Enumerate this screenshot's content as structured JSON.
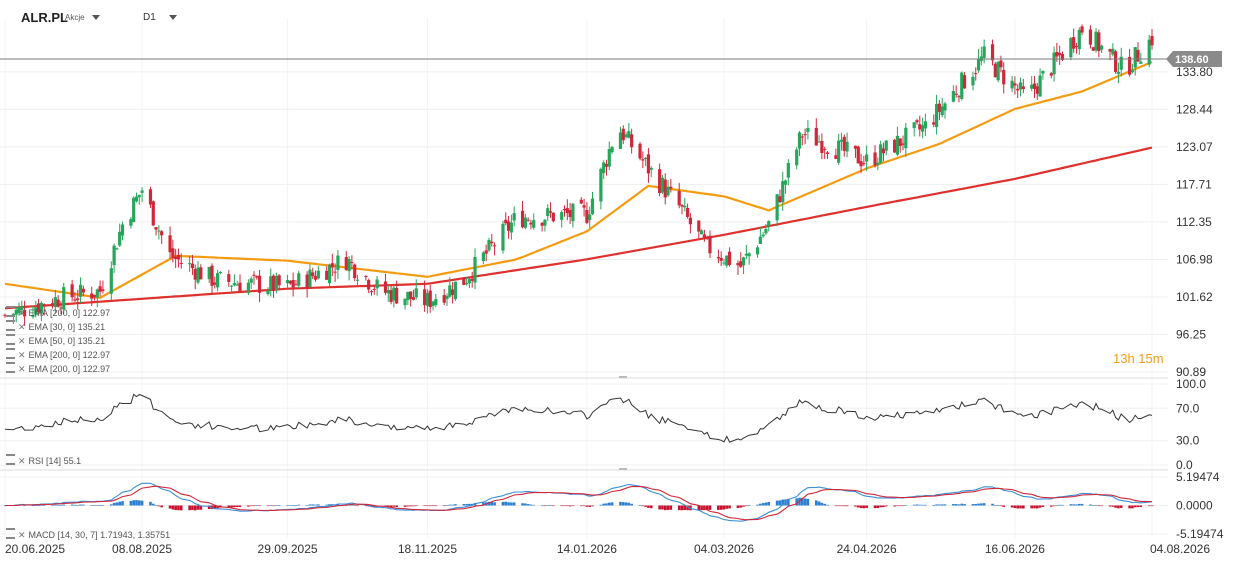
{
  "header": {
    "symbol": "ALR.PL",
    "instrument_type": "Akcje",
    "timeframe": "D1"
  },
  "countdown": "13h 15m",
  "price_axis": {
    "ticks": [
      "138.60",
      "133.80",
      "128.44",
      "123.07",
      "117.71",
      "112.35",
      "106.98",
      "101.62",
      "96.25",
      "90.89"
    ],
    "current_price": "138.60",
    "current_price_color": "#8a8a8a"
  },
  "rsi_axis": {
    "ticks": [
      "100.0",
      "70.0",
      "30.0",
      "0.0"
    ]
  },
  "macd_axis": {
    "ticks": [
      "5.19474",
      "0.0000",
      "-5.19474"
    ]
  },
  "date_axis": [
    "20.06.2025",
    "08.08.2025",
    "29.09.2025",
    "18.11.2025",
    "14.01.2026",
    "04.03.2026",
    "24.04.2026",
    "16.06.2026",
    "04.08.2026"
  ],
  "legend": {
    "indicators": [
      "EMA [200, 0] 122.97",
      "EMA [30, 0] 135.21",
      "EMA [50, 0] 135.21",
      "EMA [200, 0] 122.97",
      "EMA [200, 0] 122.97"
    ],
    "rsi": "RSI [14] 55.1",
    "macd": "MACD [14, 30, 7] 1.71943, 1.35751"
  },
  "colors": {
    "bull": "#26a65b",
    "bear": "#d0283a",
    "ema_fast": "#f39c12",
    "ema_slow": "#e0302e",
    "rsi_line": "#333333",
    "macd_line": "#3b8fd8",
    "signal_line": "#d0283a",
    "hist_pos": "#2a7fd0",
    "hist_neg": "#c8102e"
  },
  "chart_data": [
    {
      "type": "candlestick",
      "title": "ALR.PL",
      "x_ticks": [
        "20.06.2025",
        "08.08.2025",
        "29.09.2025",
        "18.11.2025",
        "14.01.2026",
        "04.03.2026",
        "24.04.2026",
        "16.06.2026",
        "04.08.2026"
      ],
      "ylim": [
        90.89,
        141.5
      ],
      "close_anchors": [
        {
          "date": "20.06.2025",
          "close": 99.0
        },
        {
          "date": "10.07.2025",
          "close": 101.5
        },
        {
          "date": "24.07.2025",
          "close": 102.5
        },
        {
          "date": "01.08.2025",
          "close": 112.0
        },
        {
          "date": "08.08.2025",
          "close": 117.0
        },
        {
          "date": "18.08.2025",
          "close": 107.5
        },
        {
          "date": "03.09.2025",
          "close": 104.0
        },
        {
          "date": "29.09.2025",
          "close": 103.0
        },
        {
          "date": "20.10.2025",
          "close": 107.0
        },
        {
          "date": "01.11.2025",
          "close": 102.5
        },
        {
          "date": "18.11.2025",
          "close": 101.0
        },
        {
          "date": "01.12.2025",
          "close": 104.0
        },
        {
          "date": "20.12.2025",
          "close": 113.0
        },
        {
          "date": "14.01.2026",
          "close": 113.5
        },
        {
          "date": "25.01.2026",
          "close": 126.0
        },
        {
          "date": "05.02.2026",
          "close": 120.0
        },
        {
          "date": "16.02.2026",
          "close": 114.5
        },
        {
          "date": "25.02.2026",
          "close": 109.0
        },
        {
          "date": "10.03.2026",
          "close": 106.0
        },
        {
          "date": "20.03.2026",
          "close": 112.0
        },
        {
          "date": "01.04.2026",
          "close": 125.0
        },
        {
          "date": "24.04.2026",
          "close": 121.0
        },
        {
          "date": "15.05.2026",
          "close": 126.0
        },
        {
          "date": "05.06.2026",
          "close": 136.0
        },
        {
          "date": "20.06.2026",
          "close": 130.0
        },
        {
          "date": "10.07.2026",
          "close": 140.0
        },
        {
          "date": "25.07.2026",
          "close": 134.0
        },
        {
          "date": "04.08.2026",
          "close": 138.6
        }
      ],
      "ema_200_anchors": [
        {
          "date": "20.06.2025",
          "value": 100.0
        },
        {
          "date": "29.09.2025",
          "value": 102.8
        },
        {
          "date": "18.11.2025",
          "value": 103.5
        },
        {
          "date": "14.01.2026",
          "value": 107.0
        },
        {
          "date": "04.03.2026",
          "value": 110.5
        },
        {
          "date": "24.04.2026",
          "value": 114.5
        },
        {
          "date": "16.06.2026",
          "value": 118.5
        },
        {
          "date": "04.08.2026",
          "value": 122.97
        }
      ],
      "ema_30_anchors": [
        {
          "date": "20.06.2025",
          "value": 103.5
        },
        {
          "date": "24.07.2025",
          "value": 101.5
        },
        {
          "date": "20.08.2025",
          "value": 107.5
        },
        {
          "date": "29.09.2025",
          "value": 106.8
        },
        {
          "date": "18.11.2025",
          "value": 104.5
        },
        {
          "date": "20.12.2025",
          "value": 107.0
        },
        {
          "date": "14.01.2026",
          "value": 111.0
        },
        {
          "date": "05.02.2026",
          "value": 117.5
        },
        {
          "date": "04.03.2026",
          "value": 116.0
        },
        {
          "date": "20.03.2026",
          "value": 114.0
        },
        {
          "date": "24.04.2026",
          "value": 120.0
        },
        {
          "date": "20.05.2026",
          "value": 123.5
        },
        {
          "date": "16.06.2026",
          "value": 128.5
        },
        {
          "date": "10.07.2026",
          "value": 131.0
        },
        {
          "date": "04.08.2026",
          "value": 135.21
        }
      ]
    },
    {
      "type": "line",
      "name": "RSI [14]",
      "ylim": [
        0,
        100
      ],
      "ticks": [
        100,
        70,
        30,
        0
      ],
      "last": 55.1
    },
    {
      "type": "bar",
      "name": "MACD [14, 30, 7]",
      "ylim": [
        -5.19474,
        5.19474
      ],
      "macd": 1.71943,
      "signal": 1.35751
    }
  ]
}
